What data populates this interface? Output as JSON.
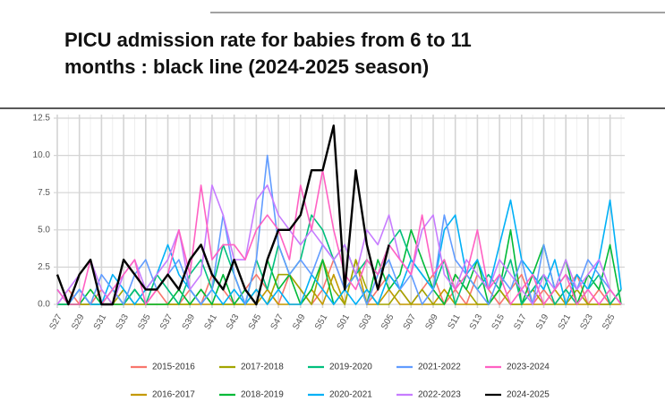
{
  "chart_data": {
    "type": "line",
    "title": [
      "PICU admission rate for babies from 6 to 11",
      "months : black line (2024-2025 season)"
    ],
    "categories": [
      "S27",
      null,
      "S29",
      null,
      "S31",
      null,
      "S33",
      null,
      "S35",
      null,
      "S37",
      null,
      "S39",
      null,
      "S41",
      null,
      "S43",
      null,
      "S45",
      null,
      "S47",
      null,
      "S49",
      null,
      "S51",
      null,
      "S01",
      null,
      "S03",
      null,
      "S05",
      null,
      "S07",
      null,
      "S09",
      null,
      "S11",
      null,
      "S13",
      null,
      "S15",
      null,
      "S17",
      null,
      "S19",
      null,
      "S21",
      null,
      "S23",
      null,
      "S25",
      null
    ],
    "ylim": [
      0,
      12.5
    ],
    "yticks": [
      {
        "value": 0,
        "label": "0.0"
      },
      {
        "value": 2.5,
        "label": "2.5"
      },
      {
        "value": 5,
        "label": "5.0"
      },
      {
        "value": 7.5,
        "label": "7.5"
      },
      {
        "value": 10,
        "label": "10.0"
      },
      {
        "value": 12.5,
        "label": "12.5"
      }
    ],
    "grid": true,
    "legend": "bottom",
    "series": [
      {
        "name": "2015-2016",
        "color": "#f8766d",
        "values": [
          0,
          1,
          0,
          0,
          1,
          0,
          0,
          1,
          0,
          1,
          0,
          0,
          1,
          0,
          2,
          1,
          0,
          1,
          2,
          1,
          0,
          2,
          1,
          0,
          1,
          3,
          1,
          2,
          0,
          1,
          2,
          1,
          0,
          1,
          2,
          0,
          1,
          0,
          2,
          1,
          0,
          1,
          2,
          0,
          1,
          0,
          1,
          2,
          0,
          1,
          0,
          1
        ]
      },
      {
        "name": "2016-2017",
        "color": "#c49a00",
        "values": [
          0,
          0,
          0,
          0,
          0,
          0,
          0,
          0,
          0,
          0,
          0,
          0,
          0,
          0,
          0,
          0,
          0,
          0,
          0,
          1,
          0,
          0,
          0,
          1,
          0,
          2,
          0,
          3,
          0,
          0,
          1,
          0,
          0,
          0,
          0,
          1,
          0,
          0,
          0,
          0,
          1,
          0,
          0,
          0,
          0,
          1,
          0,
          0,
          0,
          0,
          0,
          0
        ]
      },
      {
        "name": "2017-2018",
        "color": "#a3a500",
        "values": [
          0,
          0,
          0,
          0,
          0,
          0,
          1,
          0,
          0,
          0,
          0,
          0,
          0,
          1,
          0,
          0,
          0,
          0,
          1,
          0,
          2,
          2,
          1,
          0,
          3,
          1,
          0,
          3,
          1,
          0,
          0,
          1,
          0,
          1,
          0,
          0,
          2,
          1,
          0,
          0,
          1,
          0,
          0,
          1,
          0,
          0,
          0,
          1,
          0,
          0,
          0,
          1
        ]
      },
      {
        "name": "2018-2019",
        "color": "#00ba38",
        "values": [
          0,
          0,
          0,
          1,
          0,
          0,
          0,
          1,
          0,
          0,
          0,
          1,
          0,
          1,
          0,
          2,
          0,
          1,
          0,
          3,
          1,
          2,
          0,
          1,
          3,
          0,
          1,
          2,
          0,
          3,
          1,
          2,
          5,
          3,
          1,
          0,
          2,
          1,
          3,
          0,
          1,
          5,
          0,
          2,
          4,
          1,
          3,
          0,
          2,
          1,
          4,
          0
        ]
      },
      {
        "name": "2019-2020",
        "color": "#00bf7d",
        "values": [
          0,
          0,
          1,
          0,
          0,
          1,
          0,
          1,
          0,
          2,
          1,
          0,
          2,
          3,
          1,
          4,
          2,
          0,
          3,
          1,
          4,
          2,
          3,
          6,
          5,
          3,
          4,
          2,
          3,
          2,
          4,
          5,
          3,
          2,
          1,
          3,
          0,
          2,
          1,
          2,
          1,
          3,
          0,
          1,
          2,
          0,
          1,
          0,
          1,
          2,
          0,
          1
        ]
      },
      {
        "name": "2020-2021",
        "color": "#00b0f6",
        "values": [
          1,
          0,
          1,
          0,
          0,
          2,
          1,
          0,
          1,
          2,
          4,
          2,
          1,
          0,
          1,
          0,
          1,
          0,
          1,
          0,
          1,
          0,
          0,
          2,
          1,
          0,
          1,
          0,
          1,
          0,
          2,
          1,
          3,
          2,
          1,
          5,
          6,
          2,
          3,
          1,
          4,
          7,
          3,
          2,
          1,
          3,
          0,
          2,
          1,
          3,
          7,
          1
        ]
      },
      {
        "name": "2021-2022",
        "color": "#619cff",
        "values": [
          1,
          0,
          1,
          0,
          2,
          1,
          0,
          2,
          3,
          1,
          2,
          3,
          1,
          0,
          1,
          6,
          2,
          0,
          3,
          10,
          4,
          2,
          3,
          2,
          4,
          3,
          1,
          2,
          0,
          2,
          3,
          1,
          2,
          0,
          1,
          6,
          3,
          2,
          1,
          0,
          2,
          1,
          3,
          0,
          4,
          1,
          2,
          1,
          3,
          2,
          1,
          0
        ]
      },
      {
        "name": "2022-2023",
        "color": "#c77cff",
        "values": [
          0,
          1,
          2,
          3,
          1,
          0,
          2,
          3,
          1,
          2,
          3,
          5,
          1,
          2,
          8,
          6,
          3,
          3,
          7,
          8,
          6,
          5,
          4,
          5,
          4,
          3,
          4,
          2,
          5,
          4,
          6,
          3,
          2,
          5,
          6,
          2,
          1,
          3,
          2,
          1,
          3,
          2,
          1,
          0,
          2,
          1,
          3,
          1,
          2,
          3,
          1,
          0
        ]
      },
      {
        "name": "2023-2024",
        "color": "#ff61c3",
        "values": [
          1,
          0,
          0,
          3,
          0,
          1,
          2,
          3,
          0,
          1,
          2,
          5,
          2,
          8,
          3,
          4,
          4,
          3,
          5,
          6,
          5,
          3,
          8,
          5,
          9,
          5,
          2,
          1,
          3,
          2,
          4,
          3,
          2,
          6,
          2,
          3,
          1,
          2,
          5,
          1,
          2,
          0,
          1,
          2,
          0,
          1,
          2,
          0,
          1,
          0,
          1,
          0
        ]
      },
      {
        "name": "2024-2025",
        "color": "#000000",
        "values": [
          2,
          0,
          2,
          3,
          0,
          0,
          3,
          2,
          1,
          1,
          2,
          1,
          3,
          4,
          2,
          1,
          3,
          1,
          0,
          3,
          5,
          5,
          6,
          9,
          9,
          12,
          1,
          9,
          4,
          1,
          4,
          null,
          null,
          null,
          null,
          null,
          null,
          null,
          null,
          null,
          null,
          null,
          null,
          null,
          null,
          null,
          null,
          null,
          null,
          null,
          null,
          null
        ]
      }
    ]
  }
}
